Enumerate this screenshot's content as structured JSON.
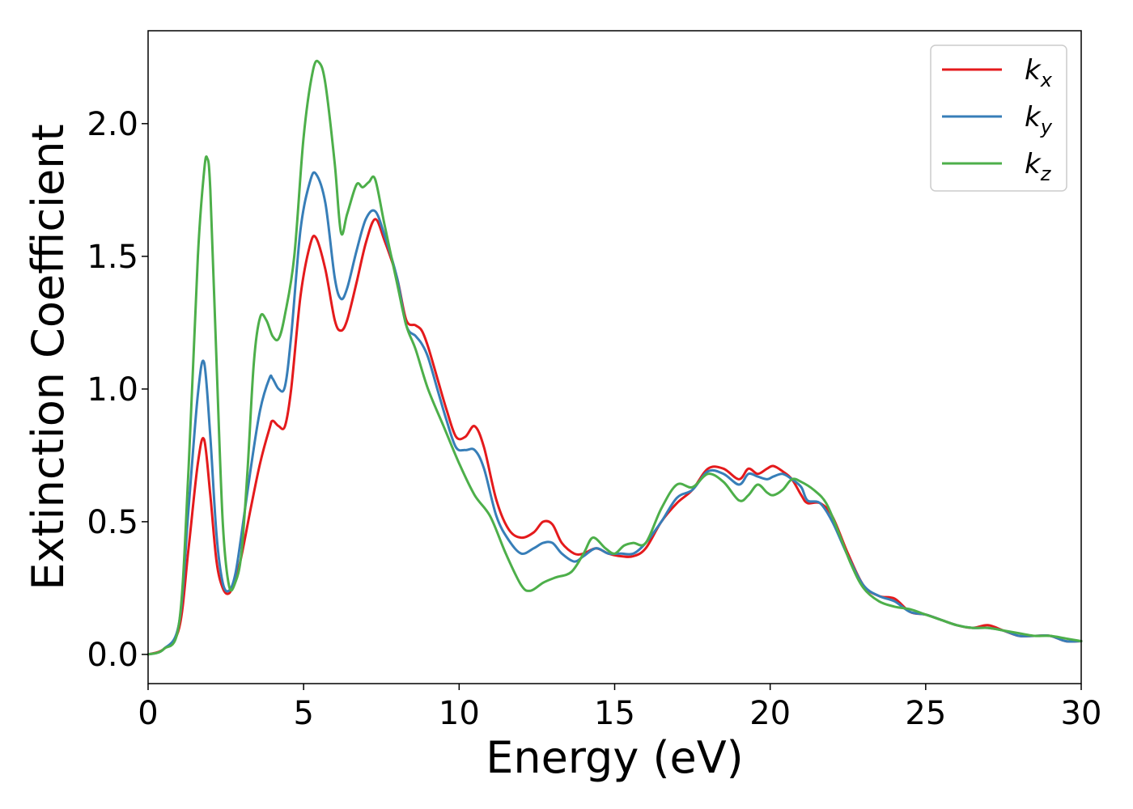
{
  "chart_data": {
    "type": "line",
    "title": "",
    "xlabel": "Energy (eV)",
    "ylabel": "Extinction Coefficient",
    "xlim": [
      0,
      30
    ],
    "ylim": [
      -0.11,
      2.35
    ],
    "xticks": [
      0,
      5,
      10,
      15,
      20,
      25,
      30
    ],
    "xtick_labels": [
      "0",
      "5",
      "10",
      "15",
      "20",
      "25",
      "30"
    ],
    "yticks": [
      0.0,
      0.5,
      1.0,
      1.5,
      2.0
    ],
    "ytick_labels": [
      "0.0",
      "0.5",
      "1.0",
      "1.5",
      "2.0"
    ],
    "grid": false,
    "legend_position": "top-right",
    "series": [
      {
        "name": "k_x",
        "label_base": "k",
        "label_sub": "x",
        "color": "#e41a1c",
        "x": [
          0,
          0.5,
          1.0,
          1.3,
          1.6,
          1.8,
          2.0,
          2.2,
          2.4,
          2.6,
          2.8,
          3.0,
          3.3,
          3.6,
          3.9,
          4.0,
          4.2,
          4.4,
          4.6,
          4.9,
          5.2,
          5.4,
          5.7,
          6.0,
          6.2,
          6.4,
          6.7,
          7.0,
          7.3,
          7.6,
          8.0,
          8.3,
          8.6,
          8.8,
          9.0,
          9.3,
          9.6,
          9.9,
          10.2,
          10.5,
          10.8,
          11.2,
          11.6,
          12.0,
          12.4,
          12.7,
          13.0,
          13.3,
          13.7,
          14.0,
          14.4,
          14.8,
          15.2,
          15.6,
          16.0,
          16.5,
          17.0,
          17.5,
          18.0,
          18.5,
          19.0,
          19.3,
          19.6,
          19.9,
          20.1,
          20.4,
          20.7,
          21.0,
          21.2,
          21.6,
          22.0,
          22.5,
          23.0,
          23.5,
          24.0,
          24.5,
          25.0,
          25.5,
          26.0,
          26.5,
          27.0,
          27.5,
          28.0,
          28.5,
          29.0,
          29.5,
          30.0
        ],
        "y": [
          0.0,
          0.02,
          0.1,
          0.4,
          0.72,
          0.81,
          0.6,
          0.35,
          0.25,
          0.23,
          0.28,
          0.37,
          0.55,
          0.72,
          0.85,
          0.88,
          0.86,
          0.86,
          1.0,
          1.35,
          1.54,
          1.57,
          1.45,
          1.26,
          1.22,
          1.26,
          1.4,
          1.55,
          1.64,
          1.56,
          1.42,
          1.26,
          1.24,
          1.22,
          1.16,
          1.04,
          0.92,
          0.82,
          0.82,
          0.86,
          0.78,
          0.58,
          0.47,
          0.44,
          0.46,
          0.5,
          0.49,
          0.42,
          0.38,
          0.38,
          0.4,
          0.38,
          0.37,
          0.37,
          0.4,
          0.5,
          0.57,
          0.62,
          0.7,
          0.7,
          0.66,
          0.7,
          0.68,
          0.7,
          0.71,
          0.69,
          0.66,
          0.6,
          0.57,
          0.57,
          0.52,
          0.38,
          0.26,
          0.22,
          0.21,
          0.16,
          0.15,
          0.13,
          0.11,
          0.1,
          0.11,
          0.09,
          0.07,
          0.07,
          0.07,
          0.05,
          0.05
        ]
      },
      {
        "name": "k_y",
        "label_base": "k",
        "label_sub": "y",
        "color": "#377eb8",
        "x": [
          0,
          0.5,
          1.0,
          1.3,
          1.6,
          1.8,
          2.0,
          2.2,
          2.4,
          2.6,
          2.8,
          3.0,
          3.3,
          3.6,
          3.9,
          4.0,
          4.2,
          4.4,
          4.6,
          4.9,
          5.2,
          5.4,
          5.7,
          6.0,
          6.2,
          6.4,
          6.7,
          7.0,
          7.3,
          7.6,
          8.0,
          8.3,
          8.6,
          8.8,
          9.0,
          9.3,
          9.6,
          9.9,
          10.2,
          10.5,
          10.8,
          11.2,
          11.6,
          12.0,
          12.4,
          12.7,
          13.0,
          13.3,
          13.7,
          14.0,
          14.4,
          14.8,
          15.2,
          15.6,
          16.0,
          16.5,
          17.0,
          17.5,
          18.0,
          18.5,
          19.0,
          19.3,
          19.6,
          19.9,
          20.1,
          20.4,
          20.7,
          21.0,
          21.2,
          21.6,
          22.0,
          22.5,
          23.0,
          23.5,
          24.0,
          24.5,
          25.0,
          25.5,
          26.0,
          26.5,
          27.0,
          27.5,
          28.0,
          28.5,
          29.0,
          29.5,
          30.0
        ],
        "y": [
          0.0,
          0.02,
          0.12,
          0.55,
          0.98,
          1.1,
          0.82,
          0.45,
          0.27,
          0.24,
          0.3,
          0.45,
          0.7,
          0.92,
          1.04,
          1.04,
          1.0,
          1.01,
          1.2,
          1.6,
          1.78,
          1.81,
          1.7,
          1.42,
          1.34,
          1.38,
          1.52,
          1.64,
          1.67,
          1.58,
          1.42,
          1.24,
          1.2,
          1.17,
          1.12,
          1.0,
          0.88,
          0.78,
          0.77,
          0.77,
          0.7,
          0.52,
          0.43,
          0.38,
          0.4,
          0.42,
          0.42,
          0.38,
          0.35,
          0.37,
          0.4,
          0.38,
          0.38,
          0.38,
          0.42,
          0.5,
          0.59,
          0.62,
          0.69,
          0.68,
          0.64,
          0.68,
          0.67,
          0.66,
          0.67,
          0.68,
          0.66,
          0.63,
          0.58,
          0.57,
          0.5,
          0.37,
          0.26,
          0.22,
          0.2,
          0.16,
          0.15,
          0.13,
          0.11,
          0.1,
          0.1,
          0.09,
          0.07,
          0.07,
          0.07,
          0.05,
          0.05
        ]
      },
      {
        "name": "k_z",
        "label_base": "k",
        "label_sub": "z",
        "color": "#4daf4a",
        "x": [
          0,
          0.5,
          1.0,
          1.3,
          1.6,
          1.8,
          1.9,
          2.0,
          2.2,
          2.4,
          2.6,
          2.8,
          3.0,
          3.2,
          3.4,
          3.6,
          3.8,
          4.0,
          4.2,
          4.4,
          4.7,
          5.0,
          5.3,
          5.5,
          5.7,
          6.0,
          6.2,
          6.4,
          6.7,
          6.9,
          7.1,
          7.3,
          7.6,
          8.0,
          8.3,
          8.6,
          9.0,
          9.5,
          10.0,
          10.5,
          11.0,
          11.5,
          12.0,
          12.3,
          12.7,
          13.1,
          13.6,
          14.0,
          14.3,
          14.7,
          15.0,
          15.3,
          15.6,
          16.0,
          16.5,
          17.0,
          17.5,
          18.0,
          18.5,
          19.0,
          19.3,
          19.6,
          19.9,
          20.1,
          20.4,
          20.7,
          21.0,
          21.4,
          21.8,
          22.2,
          22.6,
          23.0,
          23.5,
          24.0,
          24.5,
          25.0,
          25.5,
          26.0,
          26.5,
          27.0,
          27.5,
          28.0,
          28.5,
          29.0,
          29.5,
          30.0
        ],
        "y": [
          0.0,
          0.02,
          0.12,
          0.7,
          1.5,
          1.82,
          1.87,
          1.75,
          1.1,
          0.5,
          0.26,
          0.27,
          0.38,
          0.7,
          1.1,
          1.27,
          1.26,
          1.2,
          1.19,
          1.28,
          1.5,
          1.95,
          2.2,
          2.23,
          2.15,
          1.85,
          1.59,
          1.66,
          1.77,
          1.76,
          1.78,
          1.79,
          1.62,
          1.4,
          1.24,
          1.15,
          1.0,
          0.86,
          0.72,
          0.6,
          0.52,
          0.38,
          0.26,
          0.24,
          0.27,
          0.29,
          0.31,
          0.38,
          0.44,
          0.4,
          0.38,
          0.41,
          0.42,
          0.42,
          0.55,
          0.64,
          0.63,
          0.68,
          0.65,
          0.58,
          0.6,
          0.64,
          0.61,
          0.6,
          0.62,
          0.66,
          0.65,
          0.62,
          0.57,
          0.46,
          0.34,
          0.25,
          0.2,
          0.18,
          0.17,
          0.15,
          0.13,
          0.11,
          0.1,
          0.1,
          0.09,
          0.08,
          0.07,
          0.07,
          0.06,
          0.05
        ]
      }
    ]
  }
}
